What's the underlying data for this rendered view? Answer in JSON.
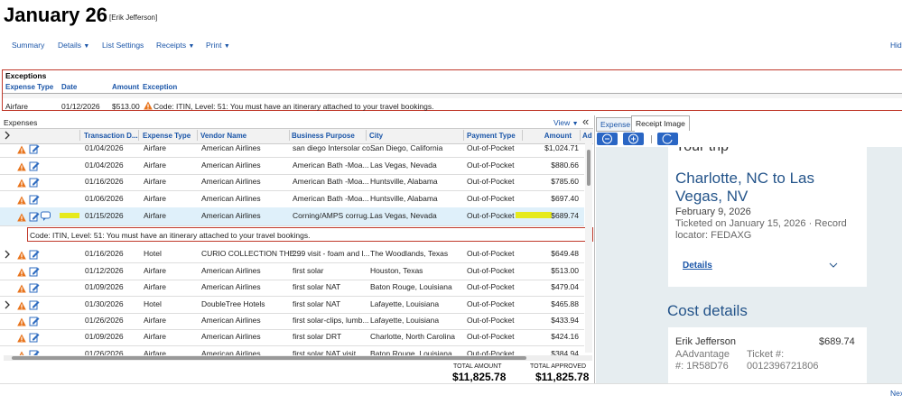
{
  "header": {
    "title": "January 26",
    "user": "[Erik Jefferson]"
  },
  "nav": {
    "items": [
      "Summary",
      "Details",
      "List Settings",
      "Receipts",
      "Print"
    ],
    "hide": "Hid"
  },
  "exceptions": {
    "title": "Exceptions",
    "columns": [
      "Expense Type",
      "Date",
      "Amount",
      "Exception"
    ],
    "rows": [
      [
        "Airfare",
        "01/12/2026",
        "$513.00",
        "Code: ITIN, Level: 51: You must have an itinerary attached to your travel bookings."
      ]
    ]
  },
  "expenses": {
    "title": "Expenses",
    "view": "View",
    "collapse": "«",
    "columns": [
      "Transaction D...",
      "Expense Type",
      "Vendor Name",
      "Business Purpose",
      "City",
      "Payment Type",
      "Amount",
      "Ad"
    ],
    "rows": [
      [
        "01/04/2026",
        "Airfare",
        "American Airlines",
        "san diego Intersolar co...",
        "San Diego, California",
        "Out-of-Pocket",
        "$1,024.71"
      ],
      [
        "01/04/2026",
        "Airfare",
        "American Airlines",
        "American Bath -Moa...",
        "Las Vegas, Nevada",
        "Out-of-Pocket",
        "$880.66"
      ],
      [
        "01/16/2026",
        "Airfare",
        "American Airlines",
        "American Bath -Moa...",
        "Huntsville, Alabama",
        "Out-of-Pocket",
        "$785.60"
      ],
      [
        "01/06/2026",
        "Airfare",
        "American Airlines",
        "American Bath -Moa...",
        "Huntsville, Alabama",
        "Out-of-Pocket",
        "$697.40"
      ],
      [
        "01/15/2026",
        "Airfare",
        "American Airlines",
        "Corning/AMPS corrug...",
        "Las Vegas, Nevada",
        "Out-of-Pocket",
        "$689.74"
      ],
      [
        "01/16/2026",
        "Hotel",
        "CURIO COLLECTION THE...",
        "299 visit - foam and l...",
        "The Woodlands, Texas",
        "Out-of-Pocket",
        "$649.48"
      ],
      [
        "01/12/2026",
        "Airfare",
        "American Airlines",
        "first solar",
        "Houston, Texas",
        "Out-of-Pocket",
        "$513.00"
      ],
      [
        "01/09/2026",
        "Airfare",
        "American Airlines",
        "first solar NAT",
        "Baton Rouge, Louisiana",
        "Out-of-Pocket",
        "$479.04"
      ],
      [
        "01/30/2026",
        "Hotel",
        "DoubleTree Hotels",
        "first solar NAT",
        "Lafayette, Louisiana",
        "Out-of-Pocket",
        "$465.88"
      ],
      [
        "01/26/2026",
        "Airfare",
        "American Airlines",
        "first solar-clips, lumb...",
        "Lafayette, Louisiana",
        "Out-of-Pocket",
        "$433.94"
      ],
      [
        "01/09/2026",
        "Airfare",
        "American Airlines",
        "first solar DRT",
        "Charlotte, North Carolina",
        "Out-of-Pocket",
        "$424.16"
      ],
      [
        "01/26/2026",
        "Airfare",
        "American Airlines",
        "first solar NAT visit",
        "Baton Rouge, Louisiana",
        "Out-of-Pocket",
        "$384.94"
      ]
    ],
    "selected_detail": "Code: ITIN, Level: 51: You must have an itinerary attached to your travel bookings.",
    "totals": {
      "amount_label": "TOTAL AMOUNT",
      "amount": "$11,825.78",
      "approved_label": "TOTAL APPROVED",
      "approved": "$11,825.78"
    }
  },
  "receipt": {
    "tabs": [
      "Expense",
      "Receipt Image"
    ],
    "trip_heading": "Your trip",
    "route": "Charlotte, NC to Las Vegas, NV",
    "date": "February 9, 2026",
    "ticketed": "Ticketed on January 15, 2026 · Record locator: FEDAXG",
    "details": "Details",
    "cost_heading": "Cost details",
    "passenger": "Erik Jefferson",
    "price": "$689.74",
    "aadvantage": "AAdvantage #: 1R58D76",
    "ticket": "Ticket #: 0012396721806"
  },
  "footer": {
    "next": "Nex"
  }
}
